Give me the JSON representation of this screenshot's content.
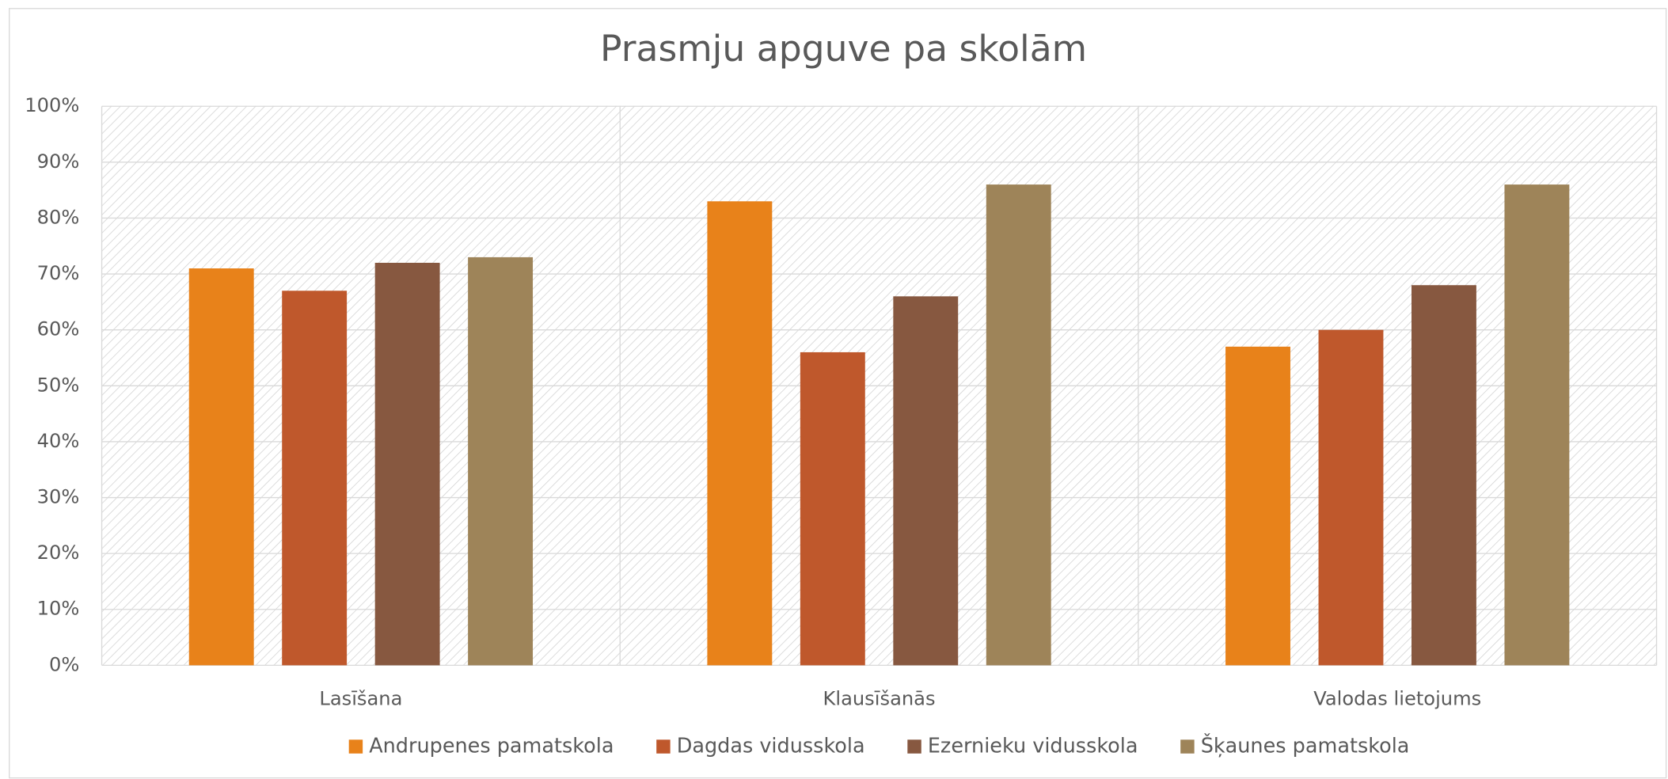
{
  "chart_data": {
    "type": "bar",
    "title": "Prasmju apguve pa skolām",
    "categories": [
      "Lasīšana",
      "Klausīšanās",
      "Valodas lietojums"
    ],
    "series": [
      {
        "name": "Andrupenes pamatskola",
        "color": "#E8821A",
        "values": [
          71,
          83,
          57
        ]
      },
      {
        "name": "Dagdas vidusskola",
        "color": "#BF582C",
        "values": [
          67,
          56,
          60
        ]
      },
      {
        "name": "Ezernieku vidusskola",
        "color": "#875840",
        "values": [
          72,
          66,
          68
        ]
      },
      {
        "name": "Šķaunes pamatskola",
        "color": "#9E8459",
        "values": [
          73,
          86,
          86
        ]
      }
    ],
    "ylim": [
      0,
      100
    ],
    "yticks": [
      {
        "value": 0,
        "label": "0%"
      },
      {
        "value": 10,
        "label": "10%"
      },
      {
        "value": 20,
        "label": "20%"
      },
      {
        "value": 30,
        "label": "30%"
      },
      {
        "value": 40,
        "label": "40%"
      },
      {
        "value": 50,
        "label": "50%"
      },
      {
        "value": 60,
        "label": "60%"
      },
      {
        "value": 70,
        "label": "70%"
      },
      {
        "value": 80,
        "label": "80%"
      },
      {
        "value": 90,
        "label": "90%"
      },
      {
        "value": 100,
        "label": "100%"
      }
    ],
    "grid": true,
    "legend": "bottom"
  }
}
